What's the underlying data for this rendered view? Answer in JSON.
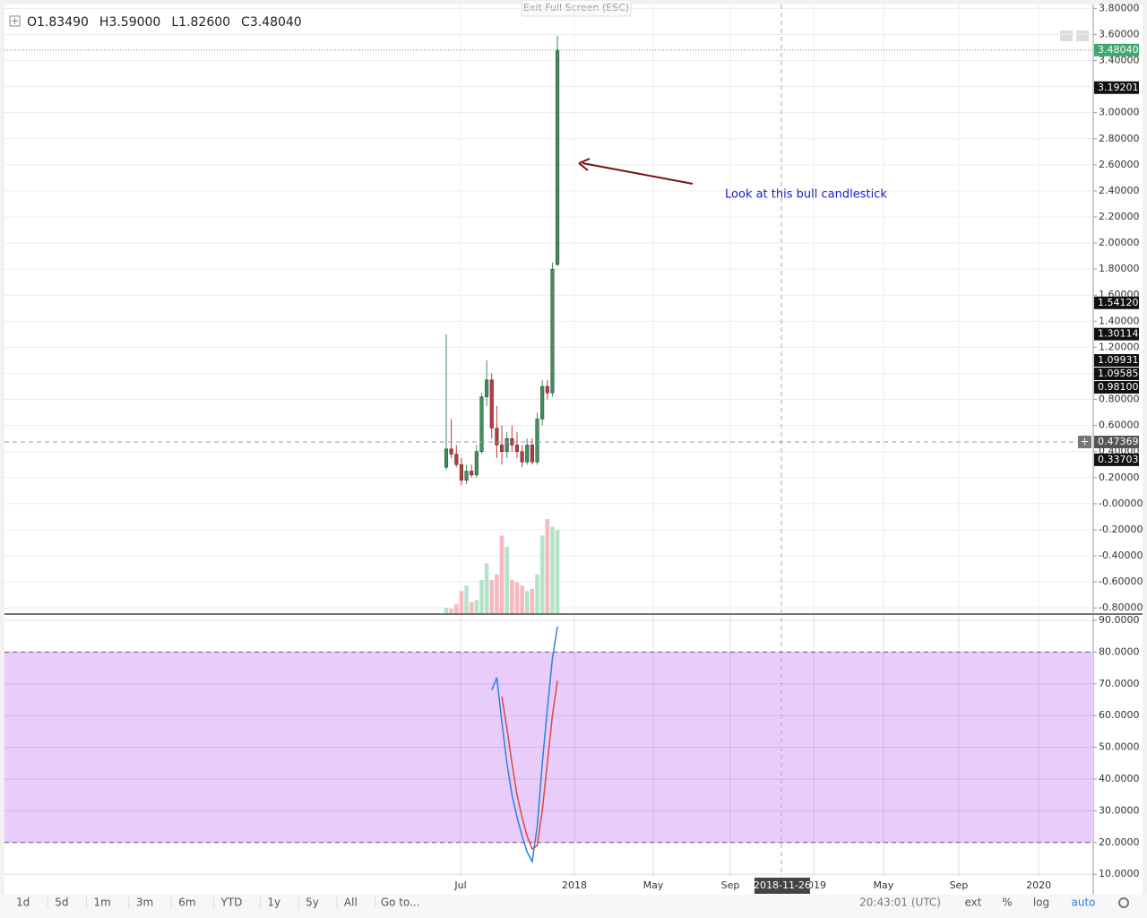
{
  "chart_data": {
    "type": "candlestick",
    "header": [
      "O1.83490",
      "H3.59000",
      "L1.82600",
      "C3.48040"
    ],
    "annotation": "Look at this bull candlestick",
    "x": [
      0,
      1,
      2,
      3,
      4,
      5,
      6,
      7,
      8,
      9,
      10,
      11,
      12,
      13,
      14,
      15,
      16,
      17,
      18,
      19,
      20,
      21,
      22
    ],
    "open": [
      0.28,
      0.42,
      0.38,
      0.3,
      0.18,
      0.25,
      0.22,
      0.4,
      0.82,
      0.95,
      0.58,
      0.45,
      0.4,
      0.5,
      0.45,
      0.4,
      0.32,
      0.45,
      0.32,
      0.65,
      0.9,
      0.85,
      1.8349
    ],
    "high": [
      1.3,
      0.65,
      0.45,
      0.35,
      0.3,
      0.3,
      0.45,
      0.85,
      1.1,
      1.0,
      0.75,
      0.6,
      0.55,
      0.6,
      0.55,
      0.45,
      0.5,
      0.5,
      0.7,
      0.95,
      0.95,
      1.85,
      3.59
    ],
    "low": [
      0.26,
      0.35,
      0.28,
      0.14,
      0.15,
      0.2,
      0.2,
      0.38,
      0.75,
      0.5,
      0.35,
      0.3,
      0.35,
      0.4,
      0.35,
      0.28,
      0.3,
      0.3,
      0.3,
      0.6,
      0.8,
      0.82,
      1.826
    ],
    "close": [
      0.42,
      0.38,
      0.3,
      0.18,
      0.25,
      0.22,
      0.4,
      0.82,
      0.95,
      0.58,
      0.45,
      0.4,
      0.5,
      0.45,
      0.4,
      0.32,
      0.45,
      0.32,
      0.65,
      0.9,
      0.85,
      1.8,
      3.4804
    ],
    "volume": [
      5,
      4,
      8,
      20,
      25,
      10,
      12,
      30,
      45,
      30,
      35,
      70,
      60,
      30,
      28,
      25,
      20,
      22,
      35,
      70,
      85,
      78,
      75
    ],
    "up_color": "#3f8f5f",
    "down_color": "#c0393b",
    "volume_up_color": "#b5e3c9",
    "volume_down_color": "#f6b9be",
    "xlim": [
      -87.4,
      128.0
    ],
    "xticks": [
      {
        "value": 2.84,
        "label": "Jul"
      },
      {
        "value": 25.35,
        "label": "2018"
      },
      {
        "value": 40.96,
        "label": "May"
      },
      {
        "value": 56.2,
        "label": "Sep"
      },
      {
        "value": 72.7,
        "label": "2019"
      },
      {
        "value": 86.5,
        "label": "May"
      },
      {
        "value": 101.4,
        "label": "Sep"
      },
      {
        "value": 117.2,
        "label": "2020"
      }
    ],
    "ylim": [
      -0.84,
      3.83
    ],
    "yticks": [
      {
        "value": 3.8,
        "label": "3.80000"
      },
      {
        "value": 3.6,
        "label": "3.60000"
      },
      {
        "value": 3.4,
        "label": "3.40000"
      },
      {
        "value": 3.2,
        "label": "3.20000"
      },
      {
        "value": 3.0,
        "label": "3.00000"
      },
      {
        "value": 2.8,
        "label": "2.80000"
      },
      {
        "value": 2.6,
        "label": "2.60000"
      },
      {
        "value": 2.4,
        "label": "2.40000"
      },
      {
        "value": 2.2,
        "label": "2.20000"
      },
      {
        "value": 2.0,
        "label": "2.00000"
      },
      {
        "value": 1.8,
        "label": "1.80000"
      },
      {
        "value": 1.6,
        "label": "1.60000"
      },
      {
        "value": 1.4,
        "label": "1.40000"
      },
      {
        "value": 1.2,
        "label": "1.20000"
      },
      {
        "value": 1.0,
        "label": "1.00000"
      },
      {
        "value": 0.8,
        "label": "0.80000"
      },
      {
        "value": 0.6,
        "label": "0.60000"
      },
      {
        "value": 0.4,
        "label": "0.40000"
      },
      {
        "value": 0.2,
        "label": "0.20000"
      },
      {
        "value": 0,
        "label": "-0.00000"
      },
      {
        "value": -0.2,
        "label": "-0.20000"
      },
      {
        "value": -0.4,
        "label": "-0.40000"
      },
      {
        "value": -0.6,
        "label": "-0.60000"
      },
      {
        "value": -0.8,
        "label": "-0.80000"
      }
    ],
    "price_labels": [
      {
        "value": 3.4804,
        "label": "3.48040",
        "color": "#3fa86c"
      },
      {
        "value": 3.19201,
        "label": "3.19201",
        "color": "#111111"
      },
      {
        "value": 1.5412,
        "label": "1.54120",
        "color": "#111111"
      },
      {
        "value": 1.30114,
        "label": "1.30114",
        "color": "#111111"
      },
      {
        "value": 1.09931,
        "label": "1.09931",
        "color": "#111111"
      },
      {
        "value": 1.09585,
        "label": "1.09585",
        "color": "#111111"
      },
      {
        "value": 0.981,
        "label": "0.98100",
        "color": "#111111"
      },
      {
        "value": 0.47369,
        "label": "0.47369",
        "color": "#555555"
      },
      {
        "value": 0.33703,
        "label": "0.33703",
        "color": "#111111"
      }
    ],
    "crosshair": {
      "y": 0.47369,
      "x": 66.3,
      "x_label": "2018-11-26"
    },
    "stochastic": {
      "ylim": [
        9.2,
        91.7
      ],
      "band": [
        20,
        80
      ],
      "band_color": "#e8cdfb",
      "yticks": [
        {
          "value": 90,
          "label": "90.0000"
        },
        {
          "value": 80,
          "label": "80.0000"
        },
        {
          "value": 70,
          "label": "70.0000"
        },
        {
          "value": 60,
          "label": "60.0000"
        },
        {
          "value": 50,
          "label": "50.0000"
        },
        {
          "value": 40,
          "label": "40.0000"
        },
        {
          "value": 30,
          "label": "30.0000"
        },
        {
          "value": 20,
          "label": "20.0000"
        },
        {
          "value": 10,
          "label": "10.0000"
        }
      ],
      "series": [
        {
          "color": "#2f7fe0",
          "values": [
            null,
            null,
            null,
            null,
            null,
            null,
            null,
            null,
            null,
            68,
            72,
            58,
            45,
            35,
            28,
            22,
            17,
            14,
            25,
            45,
            62,
            78,
            88
          ]
        },
        {
          "color": "#e0463c",
          "values": [
            null,
            null,
            null,
            null,
            null,
            null,
            null,
            null,
            null,
            null,
            null,
            66,
            56,
            45,
            35,
            28,
            22,
            18,
            19,
            30,
            45,
            60,
            71
          ]
        }
      ]
    }
  },
  "toolbar": {
    "exit": "Exit Full Screen (ESC)",
    "ranges": [
      "1d",
      "5d",
      "1m",
      "3m",
      "6m",
      "YTD",
      "1y",
      "5y",
      "All"
    ],
    "goto": "Go to...",
    "time": "20:43:01 (UTC)",
    "options": [
      "ext",
      "%",
      "log",
      "auto"
    ]
  }
}
